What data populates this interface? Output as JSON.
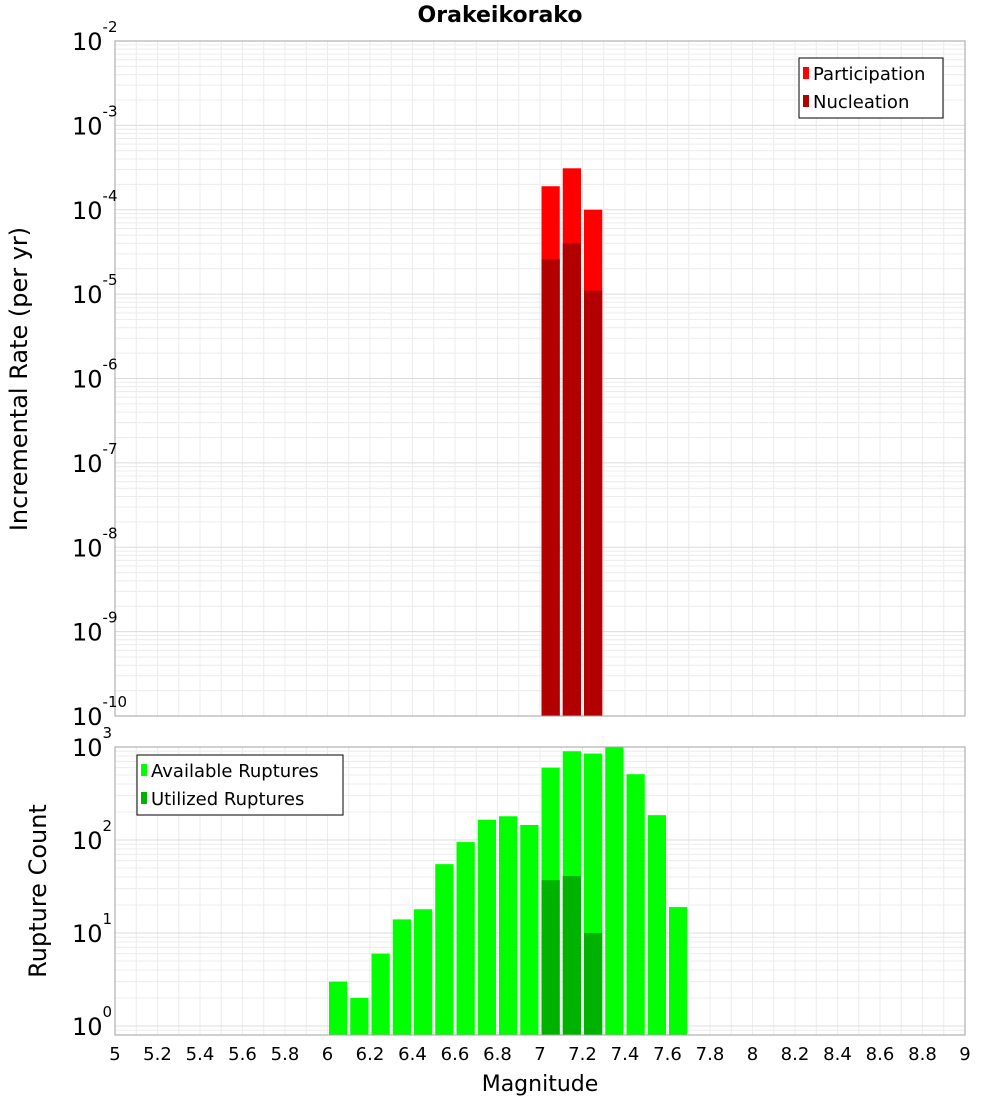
{
  "chart_data": [
    {
      "type": "bar",
      "title": "Orakeikorako",
      "xlabel": "",
      "ylabel": "Incremental Rate (per yr)",
      "yscale": "log",
      "ylim": [
        1e-10,
        0.01
      ],
      "xlim": [
        5,
        9
      ],
      "bin_width": 0.1,
      "ytick_labels": [
        {
          "base": "10",
          "exp": "-10"
        },
        {
          "base": "10",
          "exp": "-9"
        },
        {
          "base": "10",
          "exp": "-8"
        },
        {
          "base": "10",
          "exp": "-7"
        },
        {
          "base": "10",
          "exp": "-6"
        },
        {
          "base": "10",
          "exp": "-5"
        },
        {
          "base": "10",
          "exp": "-4"
        },
        {
          "base": "10",
          "exp": "-3"
        },
        {
          "base": "10",
          "exp": "-2"
        }
      ],
      "legend_position": "top-right",
      "grid": true,
      "series": [
        {
          "name": "Participation",
          "color": "#ff0000",
          "x": [
            7.05,
            7.15,
            7.25
          ],
          "values": [
            0.00019,
            0.00031,
            0.0001
          ]
        },
        {
          "name": "Nucleation",
          "color": "#b20000",
          "x": [
            7.05,
            7.15,
            7.25
          ],
          "values": [
            2.6e-05,
            4e-05,
            1.1e-05
          ]
        }
      ]
    },
    {
      "type": "bar",
      "title": "",
      "xlabel": "Magnitude",
      "ylabel": "Rupture Count",
      "yscale": "log",
      "ylim": [
        0.8,
        1000
      ],
      "xlim": [
        5,
        9
      ],
      "bin_width": 0.1,
      "ytick_labels": [
        {
          "base": "10",
          "exp": "0"
        },
        {
          "base": "10",
          "exp": "1"
        },
        {
          "base": "10",
          "exp": "2"
        },
        {
          "base": "10",
          "exp": "3"
        }
      ],
      "xtick_labels": [
        "5",
        "5.2",
        "5.4",
        "5.6",
        "5.8",
        "6",
        "6.2",
        "6.4",
        "6.6",
        "6.8",
        "7",
        "7.2",
        "7.4",
        "7.6",
        "7.8",
        "8",
        "8.2",
        "8.4",
        "8.6",
        "8.8",
        "9"
      ],
      "legend_position": "top-left",
      "grid": true,
      "series": [
        {
          "name": "Available Ruptures",
          "color": "#00ff00",
          "x": [
            6.05,
            6.15,
            6.25,
            6.35,
            6.45,
            6.55,
            6.65,
            6.75,
            6.85,
            6.95,
            7.05,
            7.15,
            7.25,
            7.35,
            7.45,
            7.55,
            7.65
          ],
          "values": [
            3,
            2,
            6,
            14,
            18,
            55,
            95,
            165,
            180,
            145,
            600,
            900,
            850,
            1000,
            510,
            185,
            19
          ]
        },
        {
          "name": "Utilized Ruptures",
          "color": "#00b200",
          "x": [
            7.05,
            7.15,
            7.25
          ],
          "values": [
            37,
            41,
            10
          ]
        }
      ]
    }
  ]
}
